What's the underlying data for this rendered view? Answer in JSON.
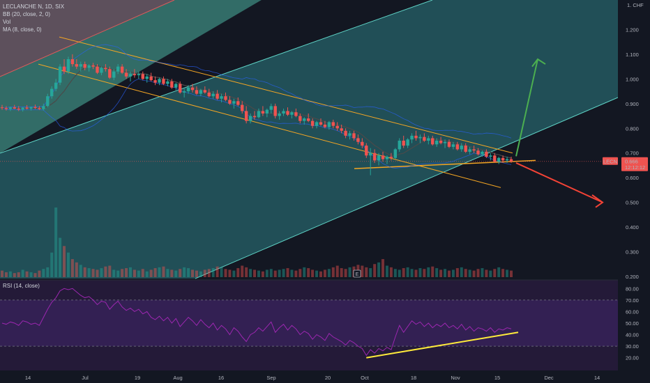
{
  "legend": {
    "symbol": "LECLANCHE N, 1D, SIX",
    "bb": "BB (20, close, 2, 0)",
    "vol": "Vol",
    "ma": "MA (8, close, 0)"
  },
  "currency": "CHF",
  "price_label": {
    "ticker": "LECN",
    "value": "0.666",
    "countdown": "12:12:12"
  },
  "earnings_marker": "E",
  "rsi_legend": "RSI (14, close)",
  "colors": {
    "background": "#131722",
    "up": "#26a69a",
    "down": "#ef5350",
    "ma": "#4a4a4a",
    "bb": "#2962ff",
    "channel_line": "#f5a623",
    "rsi_line": "#9c27b0",
    "rsi_trend": "#ffeb3b",
    "arrow_up": "#4caf50",
    "arrow_down": "#f44336"
  },
  "chart_data": [
    {
      "type": "candlestick",
      "ylabel": "CHF",
      "ylim": [
        0.2,
        1.3
      ],
      "yticks": [
        "1.300",
        "1.200",
        "1.100",
        "1.000",
        "0.900",
        "0.800",
        "0.700",
        "0.600",
        "0.500",
        "0.400",
        "0.300",
        "0.200"
      ],
      "yticks_minor": [
        "1.250",
        "1.150",
        "1.050",
        "0.950",
        "0.850",
        "0.750",
        "0.650",
        "0.550",
        "0.450",
        "0.350",
        "0.250"
      ],
      "xticks": [
        "14",
        "Jul",
        "19",
        "Aug",
        "16",
        "Sep",
        "20",
        "Oct",
        "18",
        "Nov",
        "15",
        "Dec",
        "14"
      ],
      "ohlc": [
        [
          0.885,
          0.895,
          0.875,
          0.882
        ],
        [
          0.882,
          0.89,
          0.872,
          0.878
        ],
        [
          0.878,
          0.888,
          0.87,
          0.885
        ],
        [
          0.885,
          0.895,
          0.878,
          0.88
        ],
        [
          0.88,
          0.89,
          0.87,
          0.876
        ],
        [
          0.876,
          0.886,
          0.868,
          0.884
        ],
        [
          0.884,
          0.894,
          0.876,
          0.88
        ],
        [
          0.88,
          0.888,
          0.872,
          0.886
        ],
        [
          0.886,
          0.896,
          0.878,
          0.882
        ],
        [
          0.882,
          0.89,
          0.874,
          0.878
        ],
        [
          0.878,
          0.9,
          0.872,
          0.89
        ],
        [
          0.89,
          0.94,
          0.885,
          0.93
        ],
        [
          0.93,
          0.97,
          0.92,
          0.96
        ],
        [
          0.96,
          1.0,
          0.95,
          0.985
        ],
        [
          0.985,
          1.06,
          0.975,
          1.05
        ],
        [
          1.05,
          1.08,
          1.02,
          1.03
        ],
        [
          1.03,
          1.09,
          1.02,
          1.08
        ],
        [
          1.08,
          1.1,
          1.05,
          1.06
        ],
        [
          1.06,
          1.08,
          1.04,
          1.05
        ],
        [
          1.05,
          1.07,
          1.03,
          1.06
        ],
        [
          1.06,
          1.07,
          1.035,
          1.045
        ],
        [
          1.045,
          1.06,
          1.03,
          1.055
        ],
        [
          1.055,
          1.065,
          1.04,
          1.05
        ],
        [
          1.05,
          1.06,
          1.02,
          1.025
        ],
        [
          1.025,
          1.05,
          1.015,
          1.045
        ],
        [
          1.045,
          1.06,
          1.03,
          1.04
        ],
        [
          1.04,
          1.05,
          1.0,
          1.005
        ],
        [
          1.005,
          1.04,
          0.995,
          1.03
        ],
        [
          1.03,
          1.06,
          1.02,
          1.05
        ],
        [
          1.05,
          1.06,
          1.02,
          1.025
        ],
        [
          1.025,
          1.04,
          1.0,
          1.01
        ],
        [
          1.01,
          1.03,
          0.99,
          1.02
        ],
        [
          1.02,
          1.04,
          1.005,
          1.015
        ],
        [
          1.015,
          1.03,
          1.0,
          1.02
        ],
        [
          1.02,
          1.03,
          0.995,
          1.0
        ],
        [
          1.0,
          1.02,
          0.985,
          1.01
        ],
        [
          1.01,
          1.025,
          0.99,
          0.995
        ],
        [
          0.995,
          1.01,
          0.975,
          0.985
        ],
        [
          0.985,
          1.005,
          0.975,
          1.0
        ],
        [
          1.0,
          1.01,
          0.975,
          0.98
        ],
        [
          0.98,
          1.0,
          0.97,
          0.99
        ],
        [
          0.99,
          1.0,
          0.96,
          0.965
        ],
        [
          0.965,
          0.985,
          0.955,
          0.98
        ],
        [
          0.98,
          0.99,
          0.94,
          0.945
        ],
        [
          0.945,
          0.96,
          0.925,
          0.95
        ],
        [
          0.95,
          0.975,
          0.94,
          0.965
        ],
        [
          0.965,
          0.98,
          0.945,
          0.955
        ],
        [
          0.955,
          0.97,
          0.935,
          0.94
        ],
        [
          0.94,
          0.96,
          0.93,
          0.955
        ],
        [
          0.955,
          0.97,
          0.94,
          0.945
        ],
        [
          0.945,
          0.96,
          0.925,
          0.93
        ],
        [
          0.93,
          0.95,
          0.92,
          0.94
        ],
        [
          0.94,
          0.955,
          0.915,
          0.92
        ],
        [
          0.92,
          0.94,
          0.905,
          0.93
        ],
        [
          0.93,
          0.945,
          0.91,
          0.915
        ],
        [
          0.915,
          0.93,
          0.895,
          0.9
        ],
        [
          0.9,
          0.92,
          0.88,
          0.91
        ],
        [
          0.91,
          0.925,
          0.89,
          0.895
        ],
        [
          0.895,
          0.91,
          0.86,
          0.87
        ],
        [
          0.87,
          0.89,
          0.82,
          0.83
        ],
        [
          0.83,
          0.86,
          0.82,
          0.85
        ],
        [
          0.85,
          0.87,
          0.835,
          0.845
        ],
        [
          0.845,
          0.88,
          0.84,
          0.87
        ],
        [
          0.87,
          0.89,
          0.85,
          0.86
        ],
        [
          0.86,
          0.88,
          0.845,
          0.875
        ],
        [
          0.875,
          0.9,
          0.86,
          0.89
        ],
        [
          0.89,
          0.9,
          0.84,
          0.85
        ],
        [
          0.85,
          0.87,
          0.835,
          0.86
        ],
        [
          0.86,
          0.88,
          0.85,
          0.87
        ],
        [
          0.87,
          0.885,
          0.85,
          0.855
        ],
        [
          0.855,
          0.87,
          0.84,
          0.865
        ],
        [
          0.865,
          0.88,
          0.845,
          0.85
        ],
        [
          0.85,
          0.86,
          0.82,
          0.83
        ],
        [
          0.83,
          0.845,
          0.815,
          0.84
        ],
        [
          0.84,
          0.86,
          0.825,
          0.83
        ],
        [
          0.83,
          0.84,
          0.8,
          0.81
        ],
        [
          0.81,
          0.83,
          0.8,
          0.825
        ],
        [
          0.825,
          0.84,
          0.81,
          0.815
        ],
        [
          0.815,
          0.83,
          0.8,
          0.805
        ],
        [
          0.805,
          0.83,
          0.795,
          0.825
        ],
        [
          0.825,
          0.835,
          0.8,
          0.81
        ],
        [
          0.81,
          0.825,
          0.79,
          0.8
        ],
        [
          0.8,
          0.815,
          0.78,
          0.79
        ],
        [
          0.79,
          0.8,
          0.76,
          0.77
        ],
        [
          0.77,
          0.79,
          0.755,
          0.78
        ],
        [
          0.78,
          0.79,
          0.75,
          0.76
        ],
        [
          0.76,
          0.775,
          0.735,
          0.745
        ],
        [
          0.745,
          0.76,
          0.72,
          0.73
        ],
        [
          0.73,
          0.74,
          0.68,
          0.69
        ],
        [
          0.69,
          0.72,
          0.61,
          0.7
        ],
        [
          0.7,
          0.715,
          0.66,
          0.67
        ],
        [
          0.67,
          0.7,
          0.65,
          0.69
        ],
        [
          0.69,
          0.705,
          0.665,
          0.675
        ],
        [
          0.675,
          0.69,
          0.655,
          0.685
        ],
        [
          0.685,
          0.7,
          0.67,
          0.68
        ],
        [
          0.68,
          0.72,
          0.675,
          0.715
        ],
        [
          0.715,
          0.76,
          0.705,
          0.75
        ],
        [
          0.75,
          0.77,
          0.72,
          0.73
        ],
        [
          0.73,
          0.76,
          0.72,
          0.755
        ],
        [
          0.755,
          0.78,
          0.74,
          0.77
        ],
        [
          0.77,
          0.79,
          0.75,
          0.76
        ],
        [
          0.76,
          0.775,
          0.74,
          0.765
        ],
        [
          0.765,
          0.78,
          0.745,
          0.75
        ],
        [
          0.75,
          0.77,
          0.735,
          0.76
        ],
        [
          0.76,
          0.77,
          0.73,
          0.735
        ],
        [
          0.735,
          0.76,
          0.725,
          0.75
        ],
        [
          0.75,
          0.765,
          0.735,
          0.74
        ],
        [
          0.74,
          0.755,
          0.72,
          0.745
        ],
        [
          0.745,
          0.755,
          0.72,
          0.725
        ],
        [
          0.725,
          0.745,
          0.715,
          0.735
        ],
        [
          0.735,
          0.745,
          0.71,
          0.715
        ],
        [
          0.715,
          0.74,
          0.705,
          0.73
        ],
        [
          0.73,
          0.74,
          0.7,
          0.705
        ],
        [
          0.705,
          0.725,
          0.695,
          0.715
        ],
        [
          0.715,
          0.73,
          0.7,
          0.71
        ],
        [
          0.71,
          0.72,
          0.69,
          0.695
        ],
        [
          0.695,
          0.71,
          0.685,
          0.705
        ],
        [
          0.705,
          0.715,
          0.68,
          0.685
        ],
        [
          0.685,
          0.7,
          0.67,
          0.69
        ],
        [
          0.69,
          0.7,
          0.66,
          0.665
        ],
        [
          0.665,
          0.685,
          0.655,
          0.68
        ],
        [
          0.68,
          0.69,
          0.66,
          0.67
        ],
        [
          0.67,
          0.685,
          0.66,
          0.675
        ],
        [
          0.675,
          0.685,
          0.66,
          0.666
        ]
      ],
      "volume": [
        8,
        6,
        7,
        5,
        6,
        9,
        7,
        6,
        5,
        8,
        10,
        12,
        30,
        85,
        48,
        38,
        30,
        22,
        18,
        15,
        12,
        11,
        10,
        9,
        11,
        13,
        14,
        9,
        8,
        10,
        11,
        12,
        9,
        8,
        10,
        7,
        9,
        11,
        12,
        13,
        10,
        9,
        8,
        10,
        12,
        11,
        9,
        8,
        7,
        9,
        10,
        11,
        13,
        12,
        10,
        9,
        8,
        11,
        14,
        12,
        10,
        9,
        8,
        7,
        9,
        10,
        8,
        9,
        10,
        11,
        9,
        8,
        10,
        12,
        11,
        9,
        8,
        7,
        9,
        10,
        12,
        14,
        11,
        10,
        12,
        13,
        15,
        14,
        12,
        11,
        16,
        18,
        22,
        14,
        12,
        10,
        9,
        11,
        12,
        10,
        9,
        11,
        10,
        12,
        13,
        11,
        9,
        10,
        8,
        9,
        11,
        12,
        10,
        9,
        8,
        10,
        11,
        9,
        8,
        10,
        12,
        10,
        9,
        8
      ],
      "annotations": {
        "upper_channel": "light channel band",
        "arrow_up_target": 1.08,
        "arrow_down_target": 0.5,
        "triangle_apex": 0.67
      }
    },
    {
      "type": "line",
      "name": "RSI",
      "ylim": [
        15,
        85
      ],
      "yticks": [
        "80.00",
        "70.00",
        "60.00",
        "50.00",
        "40.00",
        "30.00",
        "20.00"
      ],
      "levels": [
        70,
        30
      ],
      "values": [
        50,
        49,
        51,
        50,
        48,
        52,
        51,
        49,
        50,
        48,
        55,
        62,
        68,
        72,
        78,
        80,
        79,
        80,
        77,
        74,
        72,
        73,
        70,
        66,
        69,
        68,
        62,
        66,
        69,
        64,
        61,
        63,
        60,
        62,
        58,
        60,
        55,
        53,
        56,
        52,
        55,
        50,
        54,
        47,
        51,
        55,
        52,
        48,
        53,
        49,
        46,
        50,
        44,
        48,
        45,
        40,
        46,
        43,
        38,
        34,
        40,
        42,
        46,
        43,
        47,
        51,
        42,
        46,
        49,
        44,
        48,
        45,
        40,
        43,
        41,
        36,
        40,
        38,
        35,
        41,
        38,
        36,
        34,
        31,
        35,
        33,
        30,
        28,
        22,
        27,
        24,
        28,
        26,
        29,
        27,
        38,
        48,
        42,
        47,
        52,
        49,
        51,
        47,
        50,
        46,
        49,
        47,
        50,
        46,
        48,
        45,
        49,
        44,
        47,
        43,
        46,
        45,
        43,
        46,
        42,
        45,
        44,
        46,
        45
      ],
      "trendline": [
        [
          88,
          20
        ],
        [
          127,
          42
        ]
      ]
    }
  ]
}
